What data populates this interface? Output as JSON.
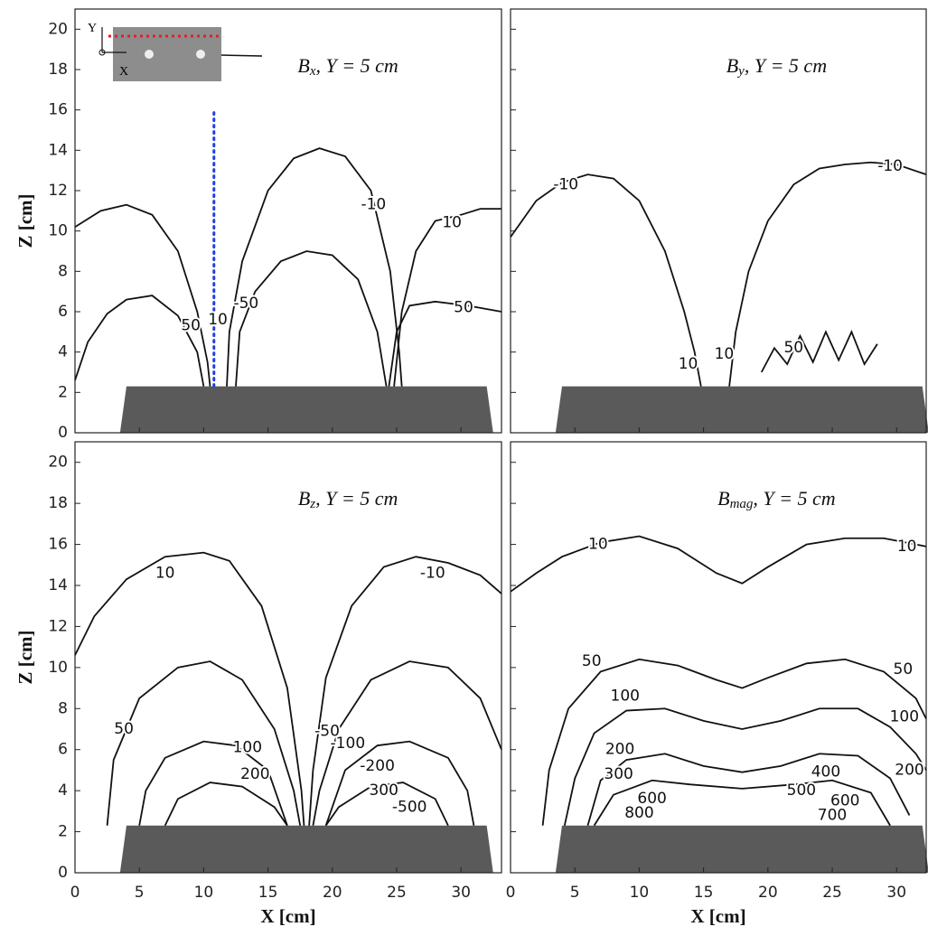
{
  "chart_data": [
    {
      "type": "contour",
      "title": {
        "symbol": "B",
        "subscript": "x",
        "rest": ", Y = 5 cm"
      },
      "ylabel": "Z [cm]",
      "xlim": [
        0,
        33.15
      ],
      "ylim": [
        0,
        21
      ],
      "xticks": [
        0,
        5,
        10,
        15,
        20,
        25,
        30
      ],
      "yticks": [
        0,
        2,
        4,
        6,
        8,
        10,
        12,
        14,
        16,
        18,
        20
      ],
      "xtick_labels": false,
      "ytick_labels": true,
      "line_color": "#111111",
      "magnet": {
        "x": [
          3.5,
          4,
          32,
          32.5
        ],
        "y": [
          0,
          2.3,
          2.3,
          0
        ],
        "color": "#5a5a5a"
      },
      "reference_line": {
        "x": [
          10.8,
          10.8
        ],
        "y": [
          2.3,
          16
        ],
        "color": "#1f3fe0"
      },
      "inset": {
        "y_axis": "Y",
        "x_axis": "X"
      },
      "contours": [
        {
          "level": 10,
          "x": [
            0,
            2,
            4,
            6,
            8,
            9.5,
            10.3,
            10.5
          ],
          "y": [
            10.2,
            11,
            11.3,
            10.8,
            9,
            6,
            3.5,
            2.3
          ]
        },
        {
          "level": 50,
          "x": [
            0,
            1,
            2.5,
            4,
            6,
            8,
            9.5,
            10
          ],
          "y": [
            2.6,
            4.5,
            5.9,
            6.6,
            6.8,
            5.8,
            4,
            2.3
          ]
        },
        {
          "level": -10,
          "x": [
            11.8,
            12,
            13,
            15,
            17,
            19,
            21,
            23,
            24.5,
            25.2,
            25.4
          ],
          "y": [
            2.3,
            5,
            8.5,
            12,
            13.6,
            14.1,
            13.7,
            12,
            8,
            4,
            2.3
          ]
        },
        {
          "level": -50,
          "x": [
            12.5,
            12.8,
            14,
            16,
            18,
            20,
            22,
            23.5,
            24.2
          ],
          "y": [
            2.3,
            5,
            7,
            8.5,
            9,
            8.8,
            7.6,
            5,
            2.3
          ]
        },
        {
          "level": 10,
          "x": [
            24.8,
            25.4,
            26.5,
            28,
            30,
            31.5,
            33.15
          ],
          "y": [
            2.3,
            6,
            9,
            10.5,
            10.8,
            11.1,
            11.1
          ]
        },
        {
          "level": 50,
          "x": [
            24.4,
            25,
            26,
            28,
            30.5,
            33.15
          ],
          "y": [
            2.3,
            5,
            6.3,
            6.5,
            6.3,
            6
          ]
        }
      ],
      "contour_labels": [
        {
          "value": -10,
          "x": 23.2,
          "y": 11.3
        },
        {
          "value": 10,
          "x": 29.3,
          "y": 10.4
        },
        {
          "value": 50,
          "x": 30.2,
          "y": 6.2
        },
        {
          "value": -50,
          "x": 13.3,
          "y": 6.4
        },
        {
          "value": 50,
          "x": 9,
          "y": 5.3
        },
        {
          "value": 10,
          "x": 11.1,
          "y": 5.6
        }
      ]
    },
    {
      "type": "contour",
      "title": {
        "symbol": "B",
        "subscript": "y",
        "rest": ", Y = 5 cm"
      },
      "xlim": [
        0,
        32.3
      ],
      "ylim": [
        0,
        21
      ],
      "xticks": [
        0,
        5,
        10,
        15,
        20,
        25,
        30
      ],
      "yticks": [
        0,
        2,
        4,
        6,
        8,
        10,
        12,
        14,
        16,
        18,
        20
      ],
      "xtick_labels": false,
      "ytick_labels": false,
      "line_color": "#111111",
      "magnet": {
        "x": [
          3.5,
          4,
          32,
          32.5
        ],
        "y": [
          0,
          2.3,
          2.3,
          0
        ],
        "color": "#5a5a5a"
      },
      "contours": [
        {
          "level": -10,
          "x": [
            0,
            2,
            4,
            6,
            8,
            10,
            12,
            13.5,
            14.3,
            14.8
          ],
          "y": [
            9.7,
            11.5,
            12.4,
            12.8,
            12.6,
            11.5,
            9,
            6,
            4,
            2.3
          ]
        },
        {
          "level": -10,
          "x": [
            17,
            17.5,
            18.5,
            20,
            22,
            24,
            26,
            28,
            30,
            32.3
          ],
          "y": [
            2.3,
            5,
            8,
            10.5,
            12.3,
            13.1,
            13.3,
            13.4,
            13.3,
            12.8
          ]
        },
        {
          "level": 50,
          "x": [
            19.5,
            20.5,
            21.5,
            22.5,
            23.5,
            24.5,
            25.5,
            26.5,
            27.5,
            28.5
          ],
          "y": [
            3,
            4.2,
            3.4,
            4.8,
            3.5,
            5,
            3.6,
            5,
            3.4,
            4.4
          ]
        }
      ],
      "contour_labels": [
        {
          "value": -10,
          "x": 4.3,
          "y": 12.3
        },
        {
          "value": -10,
          "x": 29.5,
          "y": 13.2
        },
        {
          "value": 10,
          "x": 13.8,
          "y": 3.4
        },
        {
          "value": 10,
          "x": 16.6,
          "y": 3.9
        },
        {
          "value": 50,
          "x": 22,
          "y": 4.2
        }
      ]
    },
    {
      "type": "contour",
      "title": {
        "symbol": "B",
        "subscript": "z",
        "rest": ", Y = 5 cm"
      },
      "ylabel": "Z [cm]",
      "xlabel": "X [cm]",
      "xlim": [
        0,
        33.15
      ],
      "ylim": [
        0,
        21
      ],
      "xticks": [
        0,
        5,
        10,
        15,
        20,
        25,
        30
      ],
      "yticks": [
        0,
        2,
        4,
        6,
        8,
        10,
        12,
        14,
        16,
        18,
        20
      ],
      "xtick_labels": true,
      "ytick_labels": true,
      "line_color": "#111111",
      "magnet": {
        "x": [
          3.5,
          4,
          32,
          32.5
        ],
        "y": [
          0,
          2.3,
          2.3,
          0
        ],
        "color": "#5a5a5a"
      },
      "contours": [
        {
          "level": 10,
          "x": [
            0,
            1.5,
            4,
            7,
            10,
            12,
            14.5,
            16.5,
            17.6,
            17.8
          ],
          "y": [
            10.6,
            12.5,
            14.3,
            15.4,
            15.6,
            15.2,
            13,
            9,
            4,
            2.3
          ]
        },
        {
          "level": -10,
          "x": [
            18.2,
            18.5,
            19.5,
            21.5,
            24,
            26.5,
            29,
            31.5,
            33.15
          ],
          "y": [
            2.3,
            5,
            9.5,
            13,
            14.9,
            15.4,
            15.1,
            14.5,
            13.6
          ]
        },
        {
          "level": 50,
          "x": [
            2.5,
            3,
            5,
            8,
            10.5,
            13,
            15.5,
            17,
            17.5
          ],
          "y": [
            2.3,
            5.5,
            8.5,
            10,
            10.3,
            9.4,
            7,
            4,
            2.3
          ]
        },
        {
          "level": -50,
          "x": [
            18.5,
            19,
            20.5,
            23,
            26,
            29,
            31.5,
            33.15
          ],
          "y": [
            2.3,
            4,
            7,
            9.4,
            10.3,
            10,
            8.5,
            6
          ]
        },
        {
          "level": 100,
          "x": [
            5,
            5.5,
            7,
            10,
            12.5,
            15,
            16.5
          ],
          "y": [
            2.3,
            4,
            5.6,
            6.4,
            6.2,
            5,
            2.3
          ]
        },
        {
          "level": -100,
          "x": [
            19.5,
            21,
            23.5,
            26,
            29,
            30.5,
            31
          ],
          "y": [
            2.3,
            5,
            6.2,
            6.4,
            5.6,
            4,
            2.3
          ]
        },
        {
          "level": 200,
          "x": [
            7,
            8,
            10.5,
            13,
            15.5,
            16.5
          ],
          "y": [
            2.3,
            3.6,
            4.4,
            4.2,
            3.2,
            2.3
          ]
        },
        {
          "level": -200,
          "x": [
            19.5,
            20.5,
            23,
            25.5,
            28,
            29
          ],
          "y": [
            2.3,
            3.2,
            4.2,
            4.4,
            3.6,
            2.3
          ]
        }
      ],
      "contour_labels": [
        {
          "value": 10,
          "x": 7,
          "y": 14.6
        },
        {
          "value": -10,
          "x": 27.8,
          "y": 14.6
        },
        {
          "value": 50,
          "x": 3.8,
          "y": 7
        },
        {
          "value": 100,
          "x": 13.4,
          "y": 6.1
        },
        {
          "value": -50,
          "x": 19.6,
          "y": 6.9
        },
        {
          "value": -100,
          "x": 21.2,
          "y": 6.3
        },
        {
          "value": 200,
          "x": 14,
          "y": 4.8
        },
        {
          "value": -200,
          "x": 23.5,
          "y": 5.2
        },
        {
          "value": 300,
          "x": 24,
          "y": 4
        },
        {
          "value": -500,
          "x": 26,
          "y": 3.2
        }
      ]
    },
    {
      "type": "contour",
      "title": {
        "symbol": "B",
        "subscript": "mag",
        "rest": ", Y = 5 cm"
      },
      "xlabel": "X [cm]",
      "xlim": [
        0,
        32.3
      ],
      "ylim": [
        0,
        21
      ],
      "xticks": [
        0,
        5,
        10,
        15,
        20,
        25,
        30
      ],
      "yticks": [
        0,
        2,
        4,
        6,
        8,
        10,
        12,
        14,
        16,
        18,
        20
      ],
      "xtick_labels": true,
      "ytick_labels": false,
      "line_color": "#111111",
      "magnet": {
        "x": [
          3.5,
          4,
          32,
          32.5
        ],
        "y": [
          0,
          2.3,
          2.3,
          0
        ],
        "color": "#5a5a5a"
      },
      "contours": [
        {
          "level": 10,
          "x": [
            0,
            2,
            4,
            7,
            10,
            13,
            16,
            18,
            20,
            23,
            26,
            29,
            32.3
          ],
          "y": [
            13.7,
            14.6,
            15.4,
            16.1,
            16.4,
            15.8,
            14.6,
            14.1,
            14.9,
            16,
            16.3,
            16.3,
            15.9
          ]
        },
        {
          "level": 50,
          "x": [
            2.5,
            3,
            4.5,
            7,
            10,
            13,
            16,
            18,
            20,
            23,
            26,
            29,
            31.5,
            32.3
          ],
          "y": [
            2.3,
            5,
            8,
            9.8,
            10.4,
            10.1,
            9.4,
            9,
            9.5,
            10.2,
            10.4,
            9.8,
            8.5,
            7.5
          ]
        },
        {
          "level": 100,
          "x": [
            4.2,
            5,
            6.5,
            9,
            12,
            15,
            18,
            21,
            24,
            27,
            29.5,
            31.5,
            32.3
          ],
          "y": [
            2.3,
            4.6,
            6.8,
            7.9,
            8,
            7.4,
            7,
            7.4,
            8,
            8,
            7.1,
            5.8,
            5
          ]
        },
        {
          "level": 200,
          "x": [
            6,
            7,
            9,
            12,
            15,
            18,
            21,
            24,
            27,
            29.5,
            31
          ],
          "y": [
            2.3,
            4.5,
            5.5,
            5.8,
            5.2,
            4.9,
            5.2,
            5.8,
            5.7,
            4.6,
            2.8
          ]
        },
        {
          "level": 300,
          "x": [
            6.5,
            8,
            11,
            14,
            18,
            22,
            25,
            28,
            29.5
          ],
          "y": [
            2.3,
            3.8,
            4.5,
            4.3,
            4.1,
            4.3,
            4.5,
            3.9,
            2.3
          ]
        }
      ],
      "contour_labels": [
        {
          "value": 10,
          "x": 6.8,
          "y": 16
        },
        {
          "value": 10,
          "x": 30.8,
          "y": 15.9
        },
        {
          "value": 50,
          "x": 6.3,
          "y": 10.3
        },
        {
          "value": 50,
          "x": 30.5,
          "y": 9.9
        },
        {
          "value": 100,
          "x": 8.9,
          "y": 8.6
        },
        {
          "value": 100,
          "x": 30.6,
          "y": 7.6
        },
        {
          "value": 200,
          "x": 8.5,
          "y": 6
        },
        {
          "value": 200,
          "x": 31,
          "y": 5
        },
        {
          "value": 300,
          "x": 8.4,
          "y": 4.8
        },
        {
          "value": 400,
          "x": 24.5,
          "y": 4.9
        },
        {
          "value": 500,
          "x": 22.6,
          "y": 4
        },
        {
          "value": 600,
          "x": 26,
          "y": 3.5
        },
        {
          "value": 600,
          "x": 11,
          "y": 3.6
        },
        {
          "value": 800,
          "x": 10,
          "y": 2.9
        },
        {
          "value": 700,
          "x": 25,
          "y": 2.8
        }
      ]
    }
  ]
}
